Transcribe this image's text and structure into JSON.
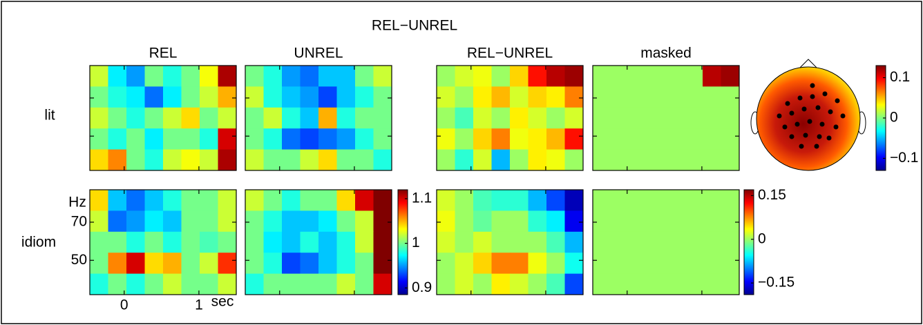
{
  "chart_data": {
    "type": "heatmap",
    "title": "REL−UNREL",
    "raw": {
      "columns": [
        "REL",
        "UNREL"
      ],
      "clim": [
        0.885,
        1.12
      ],
      "cticks": [
        1.1,
        1,
        0.9
      ]
    },
    "diff": {
      "columns": [
        "REL−UNREL",
        "masked"
      ],
      "clim": [
        -0.19,
        0.17
      ],
      "cticks": [
        0.15,
        0,
        {
          "value": -0.15,
          "label": "−0.15"
        }
      ]
    },
    "topomap": {
      "clim": [
        -0.13,
        0.13
      ],
      "cticks": [
        0.1,
        0,
        {
          "value": -0.1,
          "label": "−0.1"
        }
      ]
    },
    "xlim": [
      -0.46,
      1.5
    ],
    "xticks": [
      0,
      1
    ],
    "xlabel": "sec",
    "ylim": [
      32,
      87
    ],
    "yticks": [
      50,
      70
    ],
    "ylabel": "Hz",
    "rows": [
      {
        "label": "lit",
        "raw": [
          [
            [
              1.02,
              0.97,
              0.95,
              1.0,
              0.98,
              1.0,
              1.03,
              1.11
            ],
            [
              1.0,
              0.98,
              0.97,
              0.94,
              0.97,
              1.0,
              1.02,
              1.05
            ],
            [
              1.02,
              1.0,
              0.98,
              1.0,
              1.02,
              1.04,
              1.0,
              1.02
            ],
            [
              1.0,
              0.98,
              1.0,
              0.97,
              1.0,
              1.0,
              0.98,
              1.1
            ],
            [
              1.04,
              1.06,
              1.0,
              0.98,
              1.02,
              1.03,
              1.02,
              1.11
            ]
          ],
          [
            [
              1.0,
              0.98,
              0.95,
              0.94,
              0.96,
              0.96,
              1.0,
              1.02
            ],
            [
              1.02,
              0.98,
              0.96,
              0.95,
              0.93,
              0.96,
              0.98,
              1.0
            ],
            [
              1.0,
              1.02,
              0.98,
              0.96,
              1.05,
              0.98,
              1.0,
              1.0
            ],
            [
              1.0,
              0.98,
              0.94,
              0.93,
              0.94,
              0.95,
              0.98,
              1.0
            ],
            [
              1.02,
              1.0,
              1.0,
              1.02,
              1.04,
              1.0,
              1.0,
              0.98
            ]
          ]
        ],
        "diff": [
          [
            [
              0.0,
              0.02,
              0.03,
              0.0,
              0.05,
              0.12,
              0.15,
              0.16
            ],
            [
              0.02,
              0.0,
              0.04,
              0.06,
              0.02,
              0.05,
              0.04,
              0.08
            ],
            [
              0.0,
              -0.03,
              0.02,
              0.0,
              0.04,
              0.02,
              0.0,
              0.02
            ],
            [
              0.03,
              0.0,
              0.05,
              0.08,
              0.03,
              0.04,
              0.06,
              0.12
            ],
            [
              0.0,
              -0.04,
              0.02,
              -0.08,
              0.0,
              0.04,
              0.03,
              0.0
            ]
          ],
          [
            [
              0,
              0,
              0,
              0,
              0,
              0,
              0.15,
              0.16
            ],
            [
              0,
              0,
              0,
              0,
              0,
              0,
              0,
              0
            ],
            [
              0,
              0,
              0,
              0,
              0,
              0,
              0,
              0
            ],
            [
              0,
              0,
              0,
              0,
              0,
              0,
              0,
              0
            ],
            [
              0,
              0,
              0,
              0,
              0,
              0,
              0,
              0
            ]
          ]
        ]
      },
      {
        "label": "idiom",
        "raw": [
          [
            [
              1.04,
              0.96,
              0.94,
              0.96,
              0.98,
              1.0,
              1.0,
              1.02
            ],
            [
              1.02,
              0.94,
              0.95,
              0.97,
              0.96,
              1.0,
              1.0,
              1.02
            ],
            [
              1.0,
              1.0,
              0.98,
              1.0,
              0.98,
              1.0,
              0.99,
              1.0
            ],
            [
              1.0,
              1.06,
              1.1,
              1.04,
              1.05,
              1.0,
              1.02,
              1.08
            ],
            [
              0.98,
              1.0,
              0.98,
              1.0,
              1.02,
              1.0,
              1.0,
              1.02
            ]
          ],
          [
            [
              1.02,
              1.0,
              0.98,
              1.0,
              1.0,
              1.04,
              1.1,
              1.12
            ],
            [
              1.0,
              0.98,
              0.96,
              0.96,
              0.97,
              1.0,
              1.02,
              1.12
            ],
            [
              1.0,
              0.97,
              0.96,
              0.98,
              0.96,
              0.98,
              1.02,
              1.12
            ],
            [
              1.0,
              0.98,
              0.93,
              0.94,
              0.96,
              0.98,
              1.0,
              1.12
            ],
            [
              0.98,
              1.0,
              1.0,
              1.0,
              1.0,
              1.02,
              1.0,
              1.1
            ]
          ]
        ],
        "diff": [
          [
            [
              0.02,
              0.0,
              -0.03,
              -0.04,
              -0.04,
              -0.08,
              -0.12,
              -0.17
            ],
            [
              0.03,
              0.0,
              -0.02,
              0.0,
              0.0,
              -0.04,
              -0.06,
              -0.15
            ],
            [
              0.02,
              0.0,
              0.02,
              0.0,
              0.0,
              0.0,
              -0.03,
              -0.08
            ],
            [
              0.0,
              0.02,
              0.05,
              0.08,
              0.08,
              0.03,
              0.0,
              -0.05
            ],
            [
              0.0,
              0.02,
              0.0,
              0.04,
              0.02,
              0.0,
              -0.03,
              -0.12
            ]
          ],
          [
            [
              0,
              0,
              0,
              0,
              0,
              0,
              0,
              0
            ],
            [
              0,
              0,
              0,
              0,
              0,
              0,
              0,
              0
            ],
            [
              0,
              0,
              0,
              0,
              0,
              0,
              0,
              0
            ],
            [
              0,
              0,
              0,
              0,
              0,
              0,
              0,
              0
            ],
            [
              0,
              0,
              0,
              0,
              0,
              0,
              0,
              0
            ]
          ]
        ]
      }
    ]
  }
}
